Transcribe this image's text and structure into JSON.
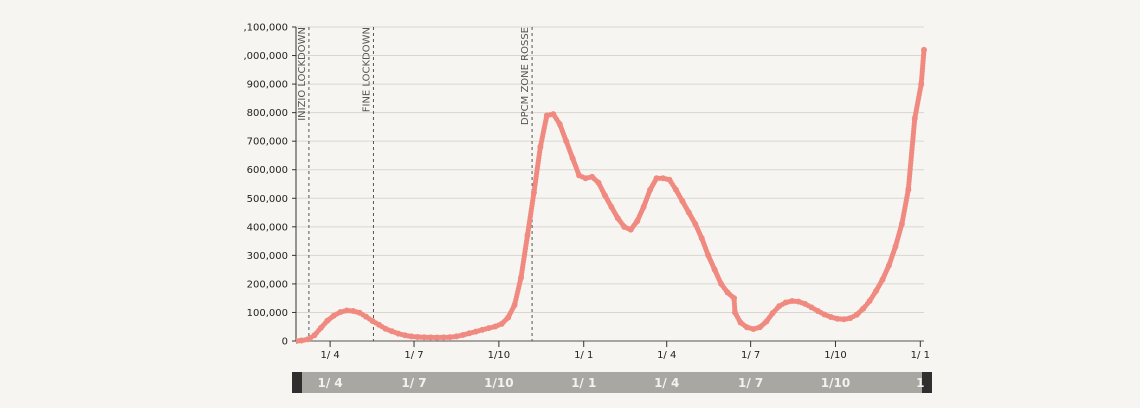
{
  "chart_data": {
    "type": "line",
    "title": "",
    "xlabel": "",
    "ylabel": "",
    "ylim": [
      0,
      1100000
    ],
    "y_ticks": [
      0,
      100000,
      200000,
      300000,
      400000,
      500000,
      600000,
      700000,
      800000,
      900000,
      1000000,
      1100000
    ],
    "y_tick_labels": [
      "0",
      "100,000",
      "200,000",
      "300,000",
      "400,000",
      "500,000",
      "600,000",
      "700,000",
      "800,000",
      "900,000",
      ",000,000",
      ",100,000"
    ],
    "x_range": [
      "2020-02-24",
      "2022-01-05"
    ],
    "x_ticks": [
      {
        "date": "2020-04-01",
        "label": "1/ 4"
      },
      {
        "date": "2020-07-01",
        "label": "1/ 7"
      },
      {
        "date": "2020-10-01",
        "label": "1/10"
      },
      {
        "date": "2021-01-01",
        "label": "1/ 1"
      },
      {
        "date": "2021-04-01",
        "label": "1/ 4"
      },
      {
        "date": "2021-07-01",
        "label": "1/ 7"
      },
      {
        "date": "2021-10-01",
        "label": "1/10"
      },
      {
        "date": "2022-01-01",
        "label": "1/ 1"
      }
    ],
    "grid": true,
    "events": [
      {
        "date": "2020-03-09",
        "label": "INIZIO LOCKDOWN"
      },
      {
        "date": "2020-05-18",
        "label": "FINE LOCKDOWN"
      },
      {
        "date": "2020-11-06",
        "label": "DPCM ZONE ROSSE"
      }
    ],
    "series": [
      {
        "name": "",
        "color": "#f08a80",
        "points": [
          [
            "2020-02-24",
            200
          ],
          [
            "2020-03-01",
            1600
          ],
          [
            "2020-03-08",
            6000
          ],
          [
            "2020-03-15",
            20000
          ],
          [
            "2020-03-22",
            46000
          ],
          [
            "2020-03-29",
            71000
          ],
          [
            "2020-04-05",
            89000
          ],
          [
            "2020-04-12",
            101000
          ],
          [
            "2020-04-19",
            107000
          ],
          [
            "2020-04-26",
            105000
          ],
          [
            "2020-05-03",
            99000
          ],
          [
            "2020-05-10",
            85000
          ],
          [
            "2020-05-17",
            70000
          ],
          [
            "2020-05-24",
            57000
          ],
          [
            "2020-05-31",
            43000
          ],
          [
            "2020-06-07",
            34000
          ],
          [
            "2020-06-14",
            26000
          ],
          [
            "2020-06-21",
            20000
          ],
          [
            "2020-06-28",
            16000
          ],
          [
            "2020-07-05",
            14000
          ],
          [
            "2020-07-12",
            13000
          ],
          [
            "2020-07-19",
            12500
          ],
          [
            "2020-07-26",
            12400
          ],
          [
            "2020-08-02",
            12500
          ],
          [
            "2020-08-09",
            13500
          ],
          [
            "2020-08-16",
            16000
          ],
          [
            "2020-08-23",
            21000
          ],
          [
            "2020-08-30",
            27000
          ],
          [
            "2020-09-06",
            33000
          ],
          [
            "2020-09-13",
            39000
          ],
          [
            "2020-09-20",
            45000
          ],
          [
            "2020-09-27",
            51000
          ],
          [
            "2020-10-04",
            60000
          ],
          [
            "2020-10-11",
            82000
          ],
          [
            "2020-10-18",
            126000
          ],
          [
            "2020-10-25",
            222000
          ],
          [
            "2020-11-01",
            370000
          ],
          [
            "2020-11-08",
            520000
          ],
          [
            "2020-11-15",
            680000
          ],
          [
            "2020-11-22",
            790000
          ],
          [
            "2020-11-29",
            795000
          ],
          [
            "2020-12-06",
            760000
          ],
          [
            "2020-12-13",
            700000
          ],
          [
            "2020-12-20",
            640000
          ],
          [
            "2020-12-27",
            580000
          ],
          [
            "2021-01-03",
            570000
          ],
          [
            "2021-01-10",
            575000
          ],
          [
            "2021-01-17",
            555000
          ],
          [
            "2021-01-24",
            510000
          ],
          [
            "2021-01-31",
            470000
          ],
          [
            "2021-02-07",
            430000
          ],
          [
            "2021-02-14",
            400000
          ],
          [
            "2021-02-21",
            390000
          ],
          [
            "2021-02-28",
            420000
          ],
          [
            "2021-03-07",
            470000
          ],
          [
            "2021-03-14",
            530000
          ],
          [
            "2021-03-21",
            570000
          ],
          [
            "2021-03-28",
            570000
          ],
          [
            "2021-04-04",
            565000
          ],
          [
            "2021-04-11",
            530000
          ],
          [
            "2021-04-18",
            490000
          ],
          [
            "2021-04-25",
            450000
          ],
          [
            "2021-05-02",
            410000
          ],
          [
            "2021-05-09",
            360000
          ],
          [
            "2021-05-16",
            300000
          ],
          [
            "2021-05-23",
            250000
          ],
          [
            "2021-05-30",
            200000
          ],
          [
            "2021-06-06",
            170000
          ],
          [
            "2021-06-13",
            150000
          ],
          [
            "2021-06-14",
            100000
          ],
          [
            "2021-06-20",
            65000
          ],
          [
            "2021-06-27",
            48000
          ],
          [
            "2021-07-04",
            42000
          ],
          [
            "2021-07-11",
            48000
          ],
          [
            "2021-07-18",
            68000
          ],
          [
            "2021-07-25",
            98000
          ],
          [
            "2021-08-01",
            122000
          ],
          [
            "2021-08-08",
            135000
          ],
          [
            "2021-08-15",
            140000
          ],
          [
            "2021-08-22",
            138000
          ],
          [
            "2021-08-29",
            130000
          ],
          [
            "2021-09-05",
            118000
          ],
          [
            "2021-09-12",
            105000
          ],
          [
            "2021-09-19",
            93000
          ],
          [
            "2021-09-26",
            84000
          ],
          [
            "2021-10-03",
            78000
          ],
          [
            "2021-10-10",
            76000
          ],
          [
            "2021-10-17",
            80000
          ],
          [
            "2021-10-24",
            92000
          ],
          [
            "2021-10-31",
            113000
          ],
          [
            "2021-11-07",
            140000
          ],
          [
            "2021-11-14",
            175000
          ],
          [
            "2021-11-21",
            215000
          ],
          [
            "2021-11-28",
            265000
          ],
          [
            "2021-12-05",
            330000
          ],
          [
            "2021-12-12",
            410000
          ],
          [
            "2021-12-19",
            530000
          ],
          [
            "2021-12-26",
            780000
          ],
          [
            "2022-01-02",
            900000
          ],
          [
            "2022-01-05",
            1020000
          ]
        ]
      }
    ]
  },
  "navigator": {
    "labels": [
      "1/ 4",
      "1/ 7",
      "1/10",
      "1/ 1",
      "1/ 4",
      "1/ 7",
      "1/10",
      "1"
    ]
  }
}
